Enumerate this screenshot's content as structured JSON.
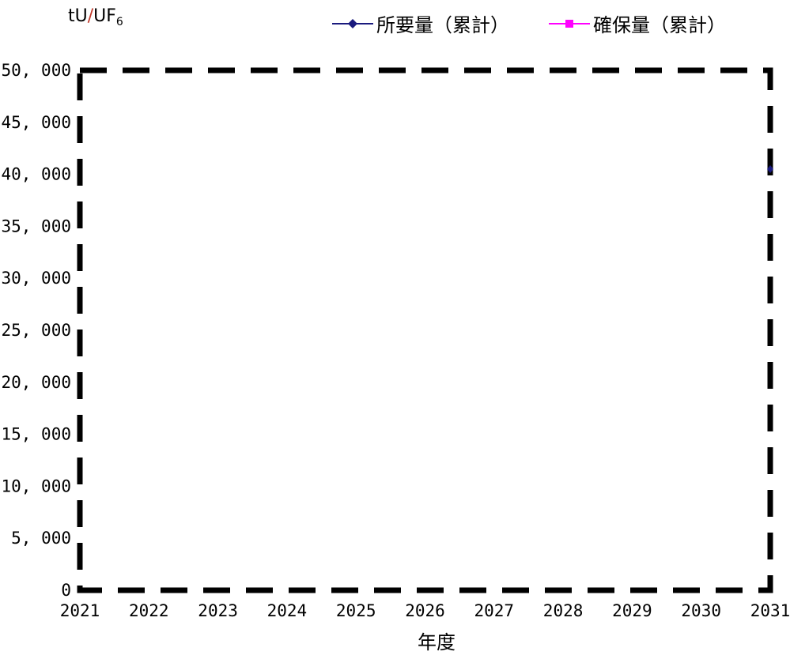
{
  "chart_data": {
    "type": "line",
    "unit_label": {
      "main": "tU",
      "slash": "/",
      "compound": "UF",
      "subscript": "6"
    },
    "xlabel": "年度",
    "ylabel": "",
    "x": [
      "2021",
      "2022",
      "2023",
      "2024",
      "2025",
      "2026",
      "2027",
      "2028",
      "2029",
      "2030",
      "2031"
    ],
    "y_ticks": [
      "0",
      "5, 000",
      "10, 000",
      "15, 000",
      "20, 000",
      "25, 000",
      "30, 000",
      "35, 000",
      "40, 000",
      "45, 000",
      "50, 000"
    ],
    "ylim": [
      0,
      50000
    ],
    "grid": false,
    "legend_position": "top-right",
    "series": [
      {
        "name": "所要量（累計）",
        "color": "#1a1a7e",
        "marker": "diamond",
        "points": [
          {
            "x": "2031",
            "y": 40500
          }
        ]
      },
      {
        "name": "確保量（累計）",
        "color": "#ff00ff",
        "marker": "square",
        "points": []
      }
    ]
  }
}
